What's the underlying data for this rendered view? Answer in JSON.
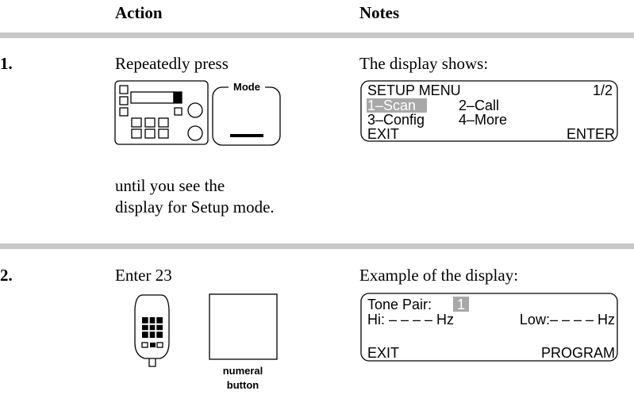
{
  "header": {
    "action": "Action",
    "notes": "Notes"
  },
  "steps": [
    {
      "number": "1.",
      "action": "Repeatedly press",
      "button": "Mode",
      "action_after": [
        "until you see the",
        "display for Setup mode."
      ],
      "notes": "The display shows:",
      "display": {
        "title": "SETUP MENU",
        "page": "1/2",
        "item1": "1–Scan",
        "item2": "2–Call",
        "item3": "3–Config",
        "item4": "4–More",
        "left": "EXIT",
        "right": "ENTER"
      }
    },
    {
      "number": "2.",
      "action": "Enter 23",
      "button": [
        "numeral",
        "button"
      ],
      "notes": "Example of the display:",
      "display": {
        "label": "Tone Pair:",
        "value": "1",
        "hi": "Hi: – – – – Hz",
        "low": "Low:– – – – Hz",
        "left": "EXIT",
        "right": "PROGRAM"
      }
    }
  ]
}
